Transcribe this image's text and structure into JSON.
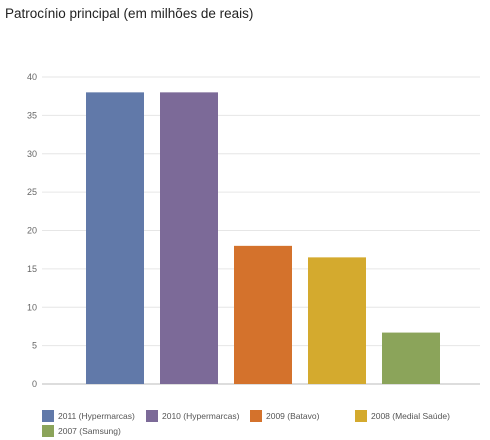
{
  "chart_data": {
    "type": "bar",
    "title": "Patrocínio principal (em milhões de reais)",
    "xlabel": "",
    "ylabel": "",
    "ylim": [
      0,
      40
    ],
    "yticks": [
      0,
      5,
      10,
      15,
      20,
      25,
      30,
      35,
      40
    ],
    "grid": true,
    "legend_position": "bottom",
    "series": [
      {
        "name": "2011 (Hypermarcas)",
        "value": 38,
        "color": "#6179a9"
      },
      {
        "name": "2010 (Hypermarcas)",
        "value": 38,
        "color": "#7c6a98"
      },
      {
        "name": "2009 (Batavo)",
        "value": 18,
        "color": "#d4722c"
      },
      {
        "name": "2008 (Medial Saúde)",
        "value": 16.5,
        "color": "#d4aa2e"
      },
      {
        "name": "2007 (Samsung)",
        "value": 6.7,
        "color": "#8ba45a"
      }
    ]
  }
}
